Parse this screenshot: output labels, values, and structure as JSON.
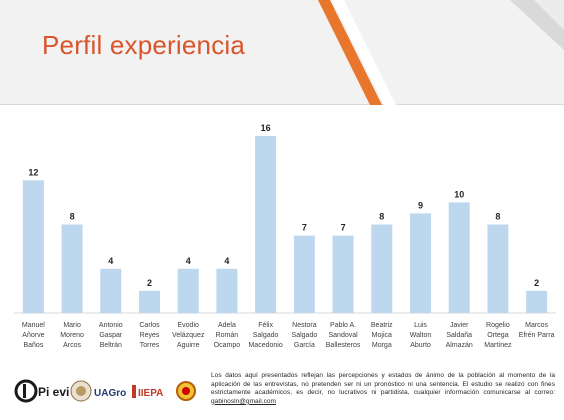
{
  "slide": {
    "title": "Perfil experiencia",
    "colors": {
      "accent": "#d9552b",
      "bar": "#bdd7ee",
      "band": "#f2f2f2"
    }
  },
  "chart_data": {
    "type": "bar",
    "categories": [
      [
        "Manuel",
        "Añorve",
        "Baños"
      ],
      [
        "Mario",
        "Moreno",
        "Arcos"
      ],
      [
        "Antonio",
        "Gaspar",
        "Beltrán"
      ],
      [
        "Carlos",
        "Reyes",
        "Torres"
      ],
      [
        "Evodio",
        "Velázquez",
        "Aguirre"
      ],
      [
        "Adela",
        "Román",
        "Ocampo"
      ],
      [
        "Félix",
        "Salgado",
        "Macedonio"
      ],
      [
        "Nestora",
        "Salgado",
        "García"
      ],
      [
        "Pablo A.",
        "Sandoval",
        "Ballesteros"
      ],
      [
        "Beatriz",
        "Mojica",
        "Morga"
      ],
      [
        "Luis",
        "Walton",
        "Aburto"
      ],
      [
        "Javier",
        "Saldaña",
        "Almazán"
      ],
      [
        "Rogelio",
        "Ortega",
        "Martínez"
      ],
      [
        "Marcos",
        "Efrén Parra"
      ]
    ],
    "values": [
      12,
      8,
      4,
      2,
      4,
      4,
      16,
      7,
      7,
      8,
      9,
      10,
      8,
      2
    ],
    "ylim": [
      0,
      16
    ],
    "grid": false,
    "data_labels": true,
    "bar_color": "#bdd7ee"
  },
  "footer": {
    "logos": [
      "Pi evi",
      "UAGro",
      "IIEPA"
    ],
    "disclaimer_text": "Los datos aquí presentados reflejan las percepciones y estados de ánimo de la población al momento de la aplicación de las entrevistas, no pretenden ser ni un pronóstico ni una sentencia. El estudio se realizó con fines estrictamente académicos, es decir, no lucrativos ni partidista, cualquier información comunicarse al correo: ",
    "email": "gabinosln@gmail.com"
  }
}
